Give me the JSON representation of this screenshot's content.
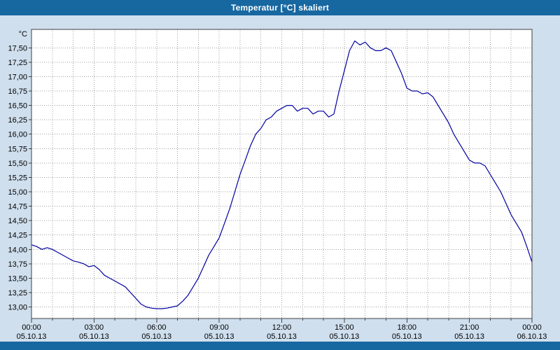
{
  "window": {
    "title": "Temperatur [°C] skaliert"
  },
  "colors": {
    "titlebar": "#1767a0",
    "background": "#cfdfee",
    "plot_background": "#ffffff",
    "grid": "#a0a0a0",
    "axis_frame": "#404040",
    "line": "#0000a0",
    "title_text": "#ffffff",
    "tick_text": "#000000"
  },
  "chart_data": {
    "type": "line",
    "title": "Temperatur [°C] skaliert",
    "xlabel": "",
    "ylabel": "°C",
    "ylim": [
      12.8,
      17.82
    ],
    "xlim_hours": [
      0,
      24
    ],
    "grid": true,
    "legend": false,
    "y_ticks": [
      {
        "value": 17.5,
        "label": "17,50"
      },
      {
        "value": 17.25,
        "label": "17,25"
      },
      {
        "value": 17.0,
        "label": "17,00"
      },
      {
        "value": 16.75,
        "label": "16,75"
      },
      {
        "value": 16.5,
        "label": "16,50"
      },
      {
        "value": 16.25,
        "label": "16,25"
      },
      {
        "value": 16.0,
        "label": "16,00"
      },
      {
        "value": 15.75,
        "label": "15,75"
      },
      {
        "value": 15.5,
        "label": "15,50"
      },
      {
        "value": 15.25,
        "label": "15,25"
      },
      {
        "value": 15.0,
        "label": "15,00"
      },
      {
        "value": 14.75,
        "label": "14,75"
      },
      {
        "value": 14.5,
        "label": "14,50"
      },
      {
        "value": 14.25,
        "label": "14,25"
      },
      {
        "value": 14.0,
        "label": "14,00"
      },
      {
        "value": 13.75,
        "label": "13,75"
      },
      {
        "value": 13.5,
        "label": "13,50"
      },
      {
        "value": 13.25,
        "label": "13,25"
      },
      {
        "value": 13.0,
        "label": "13,00"
      }
    ],
    "x_ticks": [
      {
        "hour": 0,
        "time": "00:00",
        "date": "05.10.13"
      },
      {
        "hour": 3,
        "time": "03:00",
        "date": "05.10.13"
      },
      {
        "hour": 6,
        "time": "06:00",
        "date": "05.10.13"
      },
      {
        "hour": 9,
        "time": "09:00",
        "date": "05.10.13"
      },
      {
        "hour": 12,
        "time": "12:00",
        "date": "05.10.13"
      },
      {
        "hour": 15,
        "time": "15:00",
        "date": "05.10.13"
      },
      {
        "hour": 18,
        "time": "18:00",
        "date": "05.10.13"
      },
      {
        "hour": 21,
        "time": "21:00",
        "date": "05.10.13"
      },
      {
        "hour": 24,
        "time": "00:00",
        "date": "06.10.13"
      }
    ],
    "series": [
      {
        "name": "Temperatur",
        "points": [
          [
            0,
            14.08
          ],
          [
            0.25,
            14.05
          ],
          [
            0.5,
            14.0
          ],
          [
            0.75,
            14.03
          ],
          [
            1,
            14.0
          ],
          [
            1.25,
            13.95
          ],
          [
            1.5,
            13.9
          ],
          [
            1.75,
            13.85
          ],
          [
            2,
            13.8
          ],
          [
            2.25,
            13.78
          ],
          [
            2.5,
            13.75
          ],
          [
            2.75,
            13.7
          ],
          [
            3,
            13.72
          ],
          [
            3.25,
            13.65
          ],
          [
            3.5,
            13.55
          ],
          [
            3.75,
            13.5
          ],
          [
            4,
            13.45
          ],
          [
            4.25,
            13.4
          ],
          [
            4.5,
            13.35
          ],
          [
            4.75,
            13.25
          ],
          [
            5,
            13.15
          ],
          [
            5.25,
            13.05
          ],
          [
            5.5,
            13.0
          ],
          [
            5.75,
            12.98
          ],
          [
            6,
            12.97
          ],
          [
            6.25,
            12.97
          ],
          [
            6.5,
            12.98
          ],
          [
            6.75,
            13.0
          ],
          [
            7,
            13.02
          ],
          [
            7.25,
            13.1
          ],
          [
            7.5,
            13.2
          ],
          [
            7.75,
            13.35
          ],
          [
            8,
            13.5
          ],
          [
            8.25,
            13.7
          ],
          [
            8.5,
            13.9
          ],
          [
            8.75,
            14.05
          ],
          [
            9,
            14.2
          ],
          [
            9.25,
            14.45
          ],
          [
            9.5,
            14.7
          ],
          [
            9.75,
            15.0
          ],
          [
            10,
            15.3
          ],
          [
            10.25,
            15.55
          ],
          [
            10.5,
            15.8
          ],
          [
            10.75,
            16.0
          ],
          [
            11,
            16.1
          ],
          [
            11.25,
            16.25
          ],
          [
            11.5,
            16.3
          ],
          [
            11.75,
            16.4
          ],
          [
            12,
            16.45
          ],
          [
            12.25,
            16.5
          ],
          [
            12.5,
            16.5
          ],
          [
            12.75,
            16.4
          ],
          [
            13,
            16.45
          ],
          [
            13.25,
            16.45
          ],
          [
            13.5,
            16.35
          ],
          [
            13.75,
            16.4
          ],
          [
            14,
            16.4
          ],
          [
            14.25,
            16.3
          ],
          [
            14.5,
            16.35
          ],
          [
            14.75,
            16.75
          ],
          [
            15,
            17.1
          ],
          [
            15.25,
            17.45
          ],
          [
            15.5,
            17.62
          ],
          [
            15.75,
            17.55
          ],
          [
            16,
            17.6
          ],
          [
            16.25,
            17.5
          ],
          [
            16.5,
            17.45
          ],
          [
            16.75,
            17.45
          ],
          [
            17,
            17.5
          ],
          [
            17.25,
            17.45
          ],
          [
            17.5,
            17.25
          ],
          [
            17.75,
            17.05
          ],
          [
            18,
            16.8
          ],
          [
            18.25,
            16.75
          ],
          [
            18.5,
            16.75
          ],
          [
            18.75,
            16.7
          ],
          [
            19,
            16.72
          ],
          [
            19.25,
            16.65
          ],
          [
            19.5,
            16.5
          ],
          [
            19.75,
            16.35
          ],
          [
            20,
            16.2
          ],
          [
            20.25,
            16.0
          ],
          [
            20.5,
            15.85
          ],
          [
            20.75,
            15.7
          ],
          [
            21,
            15.55
          ],
          [
            21.25,
            15.5
          ],
          [
            21.5,
            15.5
          ],
          [
            21.75,
            15.45
          ],
          [
            22,
            15.3
          ],
          [
            22.25,
            15.15
          ],
          [
            22.5,
            15.0
          ],
          [
            22.75,
            14.8
          ],
          [
            23,
            14.6
          ],
          [
            23.25,
            14.45
          ],
          [
            23.5,
            14.3
          ],
          [
            23.75,
            14.05
          ],
          [
            24,
            13.78
          ]
        ]
      }
    ]
  }
}
